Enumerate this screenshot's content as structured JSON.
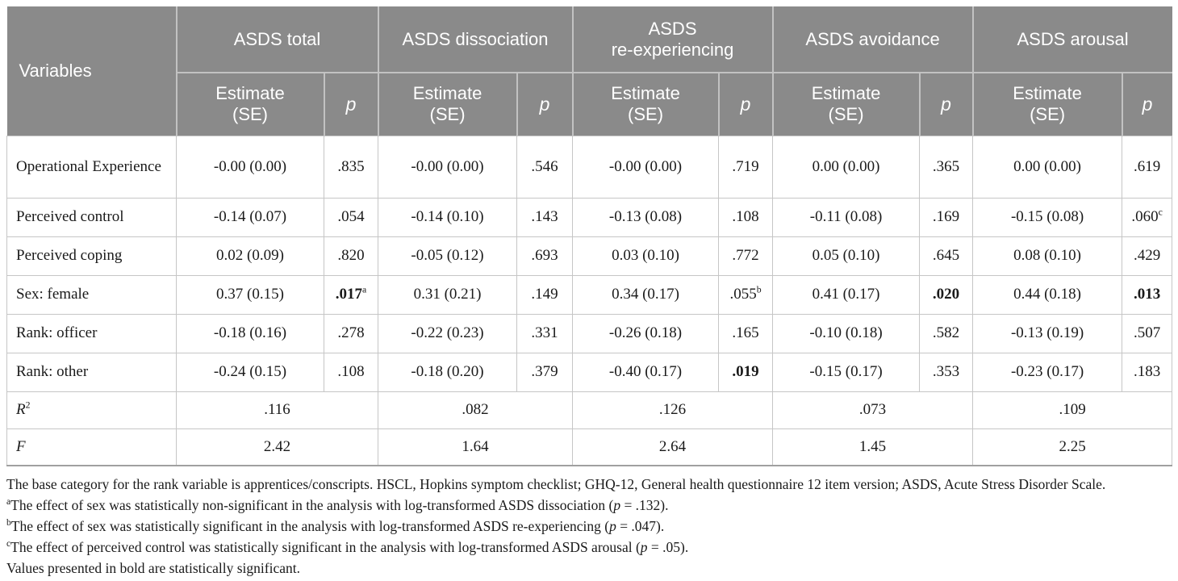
{
  "colors": {
    "header_bg": "#8a8a8a",
    "header_text": "#ffffff",
    "body_text": "#1a1a1a",
    "grid_line": "#c6c6c6"
  },
  "table": {
    "header": {
      "variables_label": "Variables",
      "estimate_label": "Estimate\n(SE)",
      "p_label": "p",
      "groups": [
        {
          "label": "ASDS total"
        },
        {
          "label": "ASDS dissociation"
        },
        {
          "label": "ASDS\nre-experiencing"
        },
        {
          "label": "ASDS avoidance"
        },
        {
          "label": "ASDS arousal"
        }
      ]
    },
    "rows": [
      {
        "variable": "Operational Experience",
        "cells": [
          {
            "estimate": "-0.00 (0.00)",
            "p": ".835",
            "bold": false,
            "sup": ""
          },
          {
            "estimate": "-0.00 (0.00)",
            "p": ".546",
            "bold": false,
            "sup": ""
          },
          {
            "estimate": "-0.00 (0.00)",
            "p": ".719",
            "bold": false,
            "sup": ""
          },
          {
            "estimate": "0.00 (0.00)",
            "p": ".365",
            "bold": false,
            "sup": ""
          },
          {
            "estimate": "0.00 (0.00)",
            "p": ".619",
            "bold": false,
            "sup": ""
          }
        ]
      },
      {
        "variable": "Perceived control",
        "cells": [
          {
            "estimate": "-0.14 (0.07)",
            "p": ".054",
            "bold": false,
            "sup": ""
          },
          {
            "estimate": "-0.14 (0.10)",
            "p": ".143",
            "bold": false,
            "sup": ""
          },
          {
            "estimate": "-0.13 (0.08)",
            "p": ".108",
            "bold": false,
            "sup": ""
          },
          {
            "estimate": "-0.11 (0.08)",
            "p": ".169",
            "bold": false,
            "sup": ""
          },
          {
            "estimate": "-0.15 (0.08)",
            "p": ".060",
            "bold": false,
            "sup": "c"
          }
        ]
      },
      {
        "variable": "Perceived coping",
        "cells": [
          {
            "estimate": "0.02 (0.09)",
            "p": ".820",
            "bold": false,
            "sup": ""
          },
          {
            "estimate": "-0.05 (0.12)",
            "p": ".693",
            "bold": false,
            "sup": ""
          },
          {
            "estimate": "0.03 (0.10)",
            "p": ".772",
            "bold": false,
            "sup": ""
          },
          {
            "estimate": "0.05 (0.10)",
            "p": ".645",
            "bold": false,
            "sup": ""
          },
          {
            "estimate": "0.08 (0.10)",
            "p": ".429",
            "bold": false,
            "sup": ""
          }
        ]
      },
      {
        "variable": "Sex: female",
        "cells": [
          {
            "estimate": "0.37 (0.15)",
            "p": ".017",
            "bold": true,
            "sup": "a"
          },
          {
            "estimate": "0.31 (0.21)",
            "p": ".149",
            "bold": false,
            "sup": ""
          },
          {
            "estimate": "0.34 (0.17)",
            "p": ".055",
            "bold": false,
            "sup": "b"
          },
          {
            "estimate": "0.41 (0.17)",
            "p": ".020",
            "bold": true,
            "sup": ""
          },
          {
            "estimate": "0.44 (0.18)",
            "p": ".013",
            "bold": true,
            "sup": ""
          }
        ]
      },
      {
        "variable": "Rank: officer",
        "cells": [
          {
            "estimate": "-0.18 (0.16)",
            "p": ".278",
            "bold": false,
            "sup": ""
          },
          {
            "estimate": "-0.22 (0.23)",
            "p": ".331",
            "bold": false,
            "sup": ""
          },
          {
            "estimate": "-0.26 (0.18)",
            "p": ".165",
            "bold": false,
            "sup": ""
          },
          {
            "estimate": "-0.10 (0.18)",
            "p": ".582",
            "bold": false,
            "sup": ""
          },
          {
            "estimate": "-0.13 (0.19)",
            "p": ".507",
            "bold": false,
            "sup": ""
          }
        ]
      },
      {
        "variable": "Rank: other",
        "cells": [
          {
            "estimate": "-0.24 (0.15)",
            "p": ".108",
            "bold": false,
            "sup": ""
          },
          {
            "estimate": "-0.18 (0.20)",
            "p": ".379",
            "bold": false,
            "sup": ""
          },
          {
            "estimate": "-0.40 (0.17)",
            "p": ".019",
            "bold": true,
            "sup": ""
          },
          {
            "estimate": "-0.15 (0.17)",
            "p": ".353",
            "bold": false,
            "sup": ""
          },
          {
            "estimate": "-0.23 (0.17)",
            "p": ".183",
            "bold": false,
            "sup": ""
          }
        ]
      }
    ],
    "summary_rows": [
      {
        "label": "R",
        "sup": "2",
        "values": [
          ".116",
          ".082",
          ".126",
          ".073",
          ".109"
        ]
      },
      {
        "label": "F",
        "sup": "",
        "values": [
          "2.42",
          "1.64",
          "2.64",
          "1.45",
          "2.25"
        ]
      }
    ]
  },
  "footnotes": [
    {
      "sup": "",
      "segments": [
        {
          "t": "The base category for the rank variable is apprentices/conscripts. HSCL, Hopkins symptom checklist; GHQ-12, General health questionnaire 12 item version; ASDS, Acute Stress Disorder Scale."
        }
      ]
    },
    {
      "sup": "a",
      "segments": [
        {
          "t": "The effect of sex was statistically non-significant in the analysis with log-transformed ASDS dissociation ("
        },
        {
          "t": "p",
          "i": true
        },
        {
          "t": " = .132)."
        }
      ]
    },
    {
      "sup": "b",
      "segments": [
        {
          "t": "The effect of sex was statistically significant in the analysis with log-transformed ASDS re-experiencing ("
        },
        {
          "t": "p",
          "i": true
        },
        {
          "t": " = .047)."
        }
      ]
    },
    {
      "sup": "c",
      "segments": [
        {
          "t": "The effect of perceived control was statistically significant in the analysis with log-transformed ASDS arousal ("
        },
        {
          "t": "p",
          "i": true
        },
        {
          "t": " = .05)."
        }
      ]
    },
    {
      "sup": "",
      "segments": [
        {
          "t": "Values presented in bold are statistically significant."
        }
      ]
    }
  ]
}
